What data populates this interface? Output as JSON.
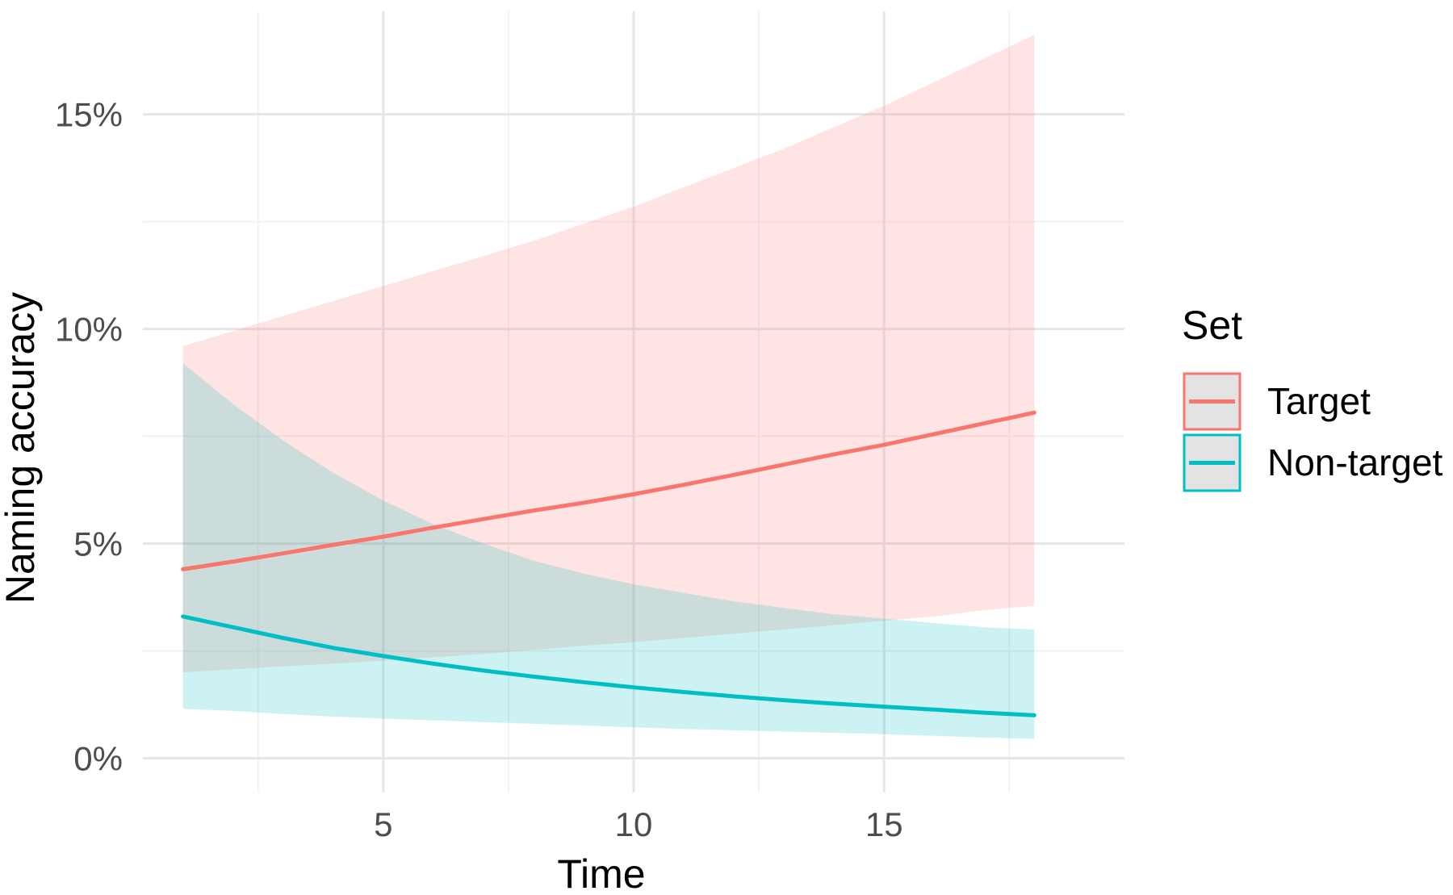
{
  "chart_data": {
    "type": "line",
    "title": "",
    "xlabel": "Time",
    "ylabel": "Naming accuracy",
    "xlim": [
      0.2,
      19.8
    ],
    "ylim": [
      -0.8,
      17.4
    ],
    "x_ticks": [
      5,
      10,
      15
    ],
    "x_tick_labels": [
      "5",
      "10",
      "15"
    ],
    "x_minor_ticks": [
      2.5,
      7.5,
      12.5,
      17.5
    ],
    "y_ticks": [
      0,
      5,
      10,
      15
    ],
    "y_tick_labels": [
      "0%",
      "5%",
      "10%",
      "15%"
    ],
    "y_minor_ticks": [
      2.5,
      7.5,
      12.5
    ],
    "grid": true,
    "legend": {
      "title": "Set",
      "position": "right"
    },
    "x": [
      1,
      2,
      3,
      4,
      5,
      6,
      7,
      8,
      9,
      10,
      11,
      12,
      13,
      14,
      15,
      16,
      17,
      18
    ],
    "series": [
      {
        "name": "Target",
        "color": "#F8766D",
        "fill": "#fde6e4",
        "values": [
          4.4,
          4.58,
          4.77,
          4.97,
          5.16,
          5.37,
          5.57,
          5.77,
          5.95,
          6.15,
          6.37,
          6.6,
          6.84,
          7.08,
          7.3,
          7.55,
          7.8,
          8.05
        ],
        "lower": [
          2.0,
          2.07,
          2.14,
          2.2,
          2.27,
          2.35,
          2.43,
          2.52,
          2.62,
          2.7,
          2.8,
          2.9,
          3.0,
          3.1,
          3.2,
          3.3,
          3.45,
          3.55
        ],
        "upper": [
          9.6,
          9.95,
          10.3,
          10.65,
          11.0,
          11.35,
          11.7,
          12.05,
          12.45,
          12.85,
          13.3,
          13.75,
          14.2,
          14.7,
          15.2,
          15.75,
          16.3,
          16.85
        ]
      },
      {
        "name": "Non-target",
        "color": "#00BFC4",
        "fill": "#d8f3f4",
        "values": [
          3.3,
          3.05,
          2.8,
          2.57,
          2.38,
          2.2,
          2.04,
          1.9,
          1.77,
          1.65,
          1.54,
          1.44,
          1.35,
          1.27,
          1.2,
          1.13,
          1.06,
          1.0
        ],
        "lower": [
          1.15,
          1.1,
          1.03,
          0.97,
          0.92,
          0.88,
          0.84,
          0.8,
          0.76,
          0.72,
          0.68,
          0.65,
          0.62,
          0.59,
          0.56,
          0.52,
          0.48,
          0.45
        ],
        "upper": [
          9.2,
          8.25,
          7.4,
          6.65,
          6.0,
          5.45,
          5.0,
          4.6,
          4.3,
          4.05,
          3.85,
          3.65,
          3.5,
          3.35,
          3.25,
          3.15,
          3.05,
          3.0
        ]
      }
    ]
  }
}
